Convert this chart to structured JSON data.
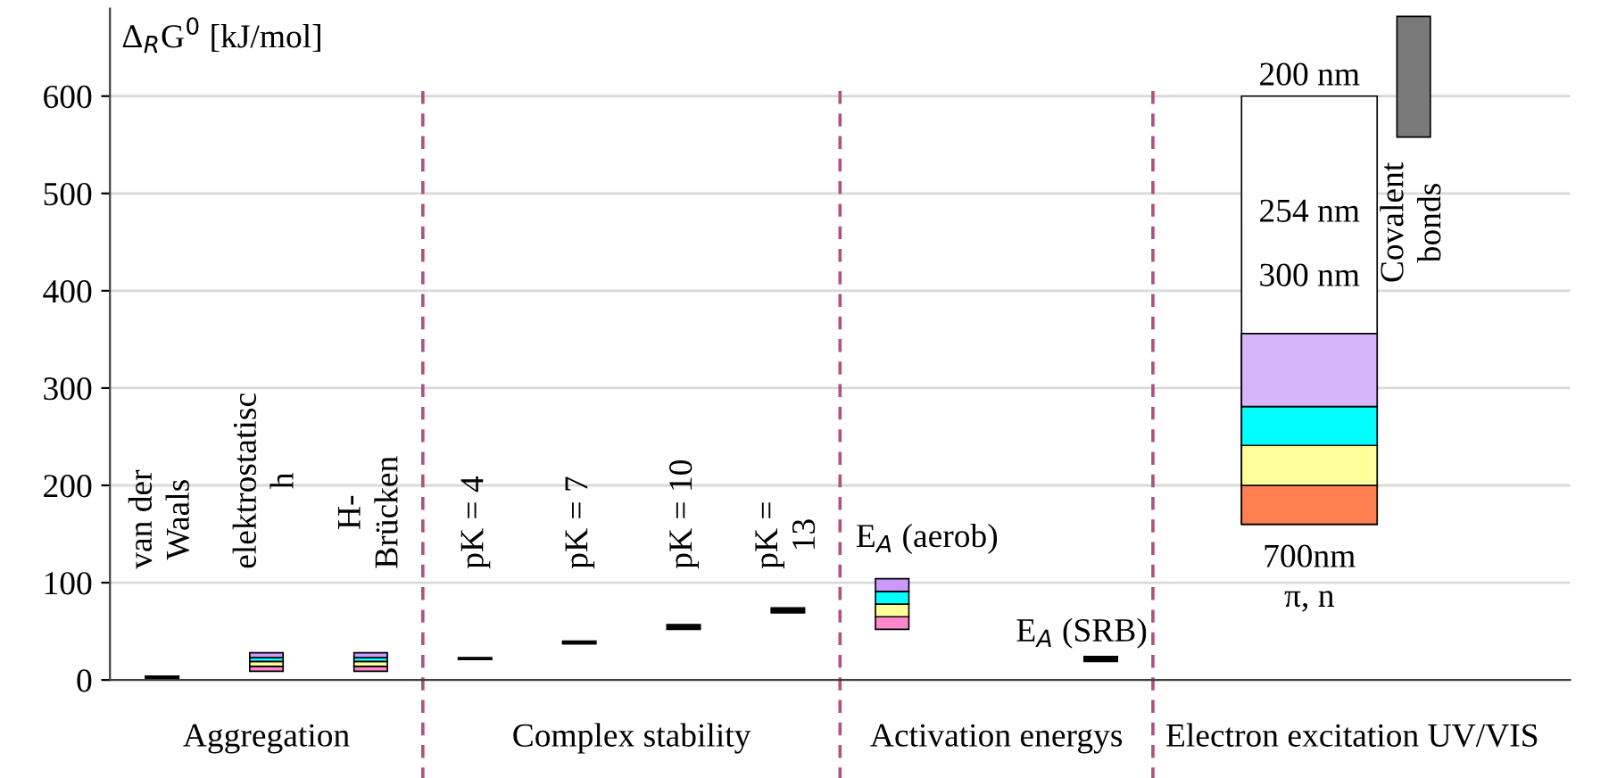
{
  "chart_data": {
    "type": "bar",
    "ylabel": "Δ$_{R}$G$^{0}$ [kJ/mol]",
    "categories": [
      "van der\nWaals",
      "elektrostatisc\nh",
      "H-\nBrücken",
      "pK = 4",
      "pK = 7",
      "pK = 10",
      "pK =\n13",
      "E$_{A}$ (aerob)",
      null,
      "E$_{A}$ (SRB)",
      null,
      null,
      "Covalent\nbonds"
    ],
    "series": [
      {
        "colors": [
          "#000000",
          null,
          null,
          "#000000",
          "#000000",
          "#000000",
          "#000000",
          null,
          null,
          "#000000",
          null,
          "#ffffff",
          "#7a7a7a"
        ],
        "base": [
          0,
          null,
          null,
          21,
          37,
          52,
          69,
          null,
          null,
          19,
          null,
          160,
          558
        ],
        "values": [
          4,
          null,
          null,
          2,
          3,
          5,
          5,
          null,
          null,
          5,
          null,
          440,
          124
        ]
      },
      {
        "colors": [
          null,
          "#ff88cc",
          "#ff88cc",
          null,
          null,
          null,
          null,
          "#ff88cc",
          null,
          null,
          null,
          "#ff7f50",
          null
        ],
        "base": [
          null,
          9,
          9,
          null,
          null,
          null,
          null,
          52,
          null,
          null,
          null,
          160,
          null
        ],
        "values": [
          null,
          5,
          5,
          null,
          null,
          null,
          null,
          13,
          null,
          null,
          null,
          40,
          null
        ]
      },
      {
        "colors": [
          null,
          "#ffff99",
          "#ffff99",
          null,
          null,
          null,
          null,
          "#ffff99",
          null,
          null,
          null,
          "#ffff99",
          null
        ],
        "base": [
          null,
          14,
          14,
          null,
          null,
          null,
          null,
          65,
          null,
          null,
          null,
          200,
          null
        ],
        "values": [
          null,
          5,
          5,
          null,
          null,
          null,
          null,
          13,
          null,
          null,
          null,
          41,
          null
        ]
      },
      {
        "colors": [
          null,
          "#00ffff",
          "#00ffff",
          null,
          null,
          null,
          null,
          "#00ffff",
          null,
          null,
          null,
          "#00ffff",
          null
        ],
        "base": [
          null,
          19,
          19,
          null,
          null,
          null,
          null,
          78,
          null,
          null,
          null,
          241,
          null
        ],
        "values": [
          null,
          4,
          4,
          null,
          null,
          null,
          null,
          13,
          null,
          null,
          null,
          40,
          null
        ]
      },
      {
        "colors": [
          null,
          "#cc99ff",
          "#cc99ff",
          null,
          null,
          null,
          null,
          "#cc99ff",
          null,
          null,
          null,
          "#d8b4fa",
          null
        ],
        "base": [
          null,
          23,
          23,
          null,
          null,
          null,
          null,
          91,
          null,
          null,
          null,
          281,
          null
        ],
        "values": [
          null,
          5,
          5,
          null,
          null,
          null,
          null,
          13,
          null,
          null,
          null,
          75,
          null
        ]
      }
    ],
    "ylim": [
      0,
      690
    ],
    "yticks": [
      0,
      100,
      200,
      300,
      400,
      500,
      600
    ],
    "grid": "y",
    "annotations": [
      "200 nm",
      "254 nm",
      "300 nm",
      "700nm\nπ, n",
      "Aggregation",
      "Complex stability",
      "Activation energys",
      "Electron excitation UV/VIS"
    ]
  }
}
